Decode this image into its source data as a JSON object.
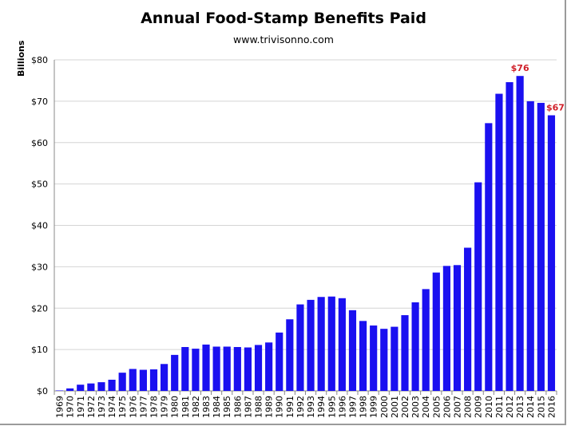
{
  "chart_data": {
    "type": "bar",
    "title": "Annual Food-Stamp Benefits Paid",
    "subtitle": "www.trivisonno.com",
    "ylabel": "Billions",
    "xlabel": "",
    "ylim": [
      0,
      80
    ],
    "yticks": [
      "$0",
      "$10",
      "$20",
      "$30",
      "$40",
      "$50",
      "$60",
      "$70",
      "$80"
    ],
    "grid": true,
    "bar_color": "#1a10f0",
    "annotation_color": "#d0202a",
    "categories": [
      "1969",
      "1970",
      "1971",
      "1972",
      "1973",
      "1974",
      "1975",
      "1976",
      "1977",
      "1978",
      "1979",
      "1980",
      "1981",
      "1982",
      "1983",
      "1984",
      "1985",
      "1986",
      "1987",
      "1988",
      "1989",
      "1990",
      "1991",
      "1992",
      "1993",
      "1994",
      "1995",
      "1996",
      "1997",
      "1998",
      "1999",
      "2000",
      "2001",
      "2002",
      "2003",
      "2004",
      "2005",
      "2006",
      "2007",
      "2008",
      "2009",
      "2010",
      "2011",
      "2012",
      "2013",
      "2014",
      "2015",
      "2016"
    ],
    "values": [
      0.1,
      0.6,
      1.5,
      1.8,
      2.1,
      2.7,
      4.4,
      5.3,
      5.1,
      5.2,
      6.5,
      8.7,
      10.6,
      10.2,
      11.2,
      10.7,
      10.7,
      10.6,
      10.5,
      11.1,
      11.7,
      14.1,
      17.3,
      20.9,
      22.0,
      22.7,
      22.8,
      22.4,
      19.5,
      16.9,
      15.8,
      15.0,
      15.5,
      18.3,
      21.4,
      24.6,
      28.6,
      30.2,
      30.4,
      34.6,
      50.4,
      64.7,
      71.8,
      74.6,
      76.1,
      70.0,
      69.6,
      66.6
    ],
    "annotations": [
      {
        "category": "2013",
        "text": "$76"
      },
      {
        "category": "2016",
        "text": "$67"
      }
    ]
  }
}
